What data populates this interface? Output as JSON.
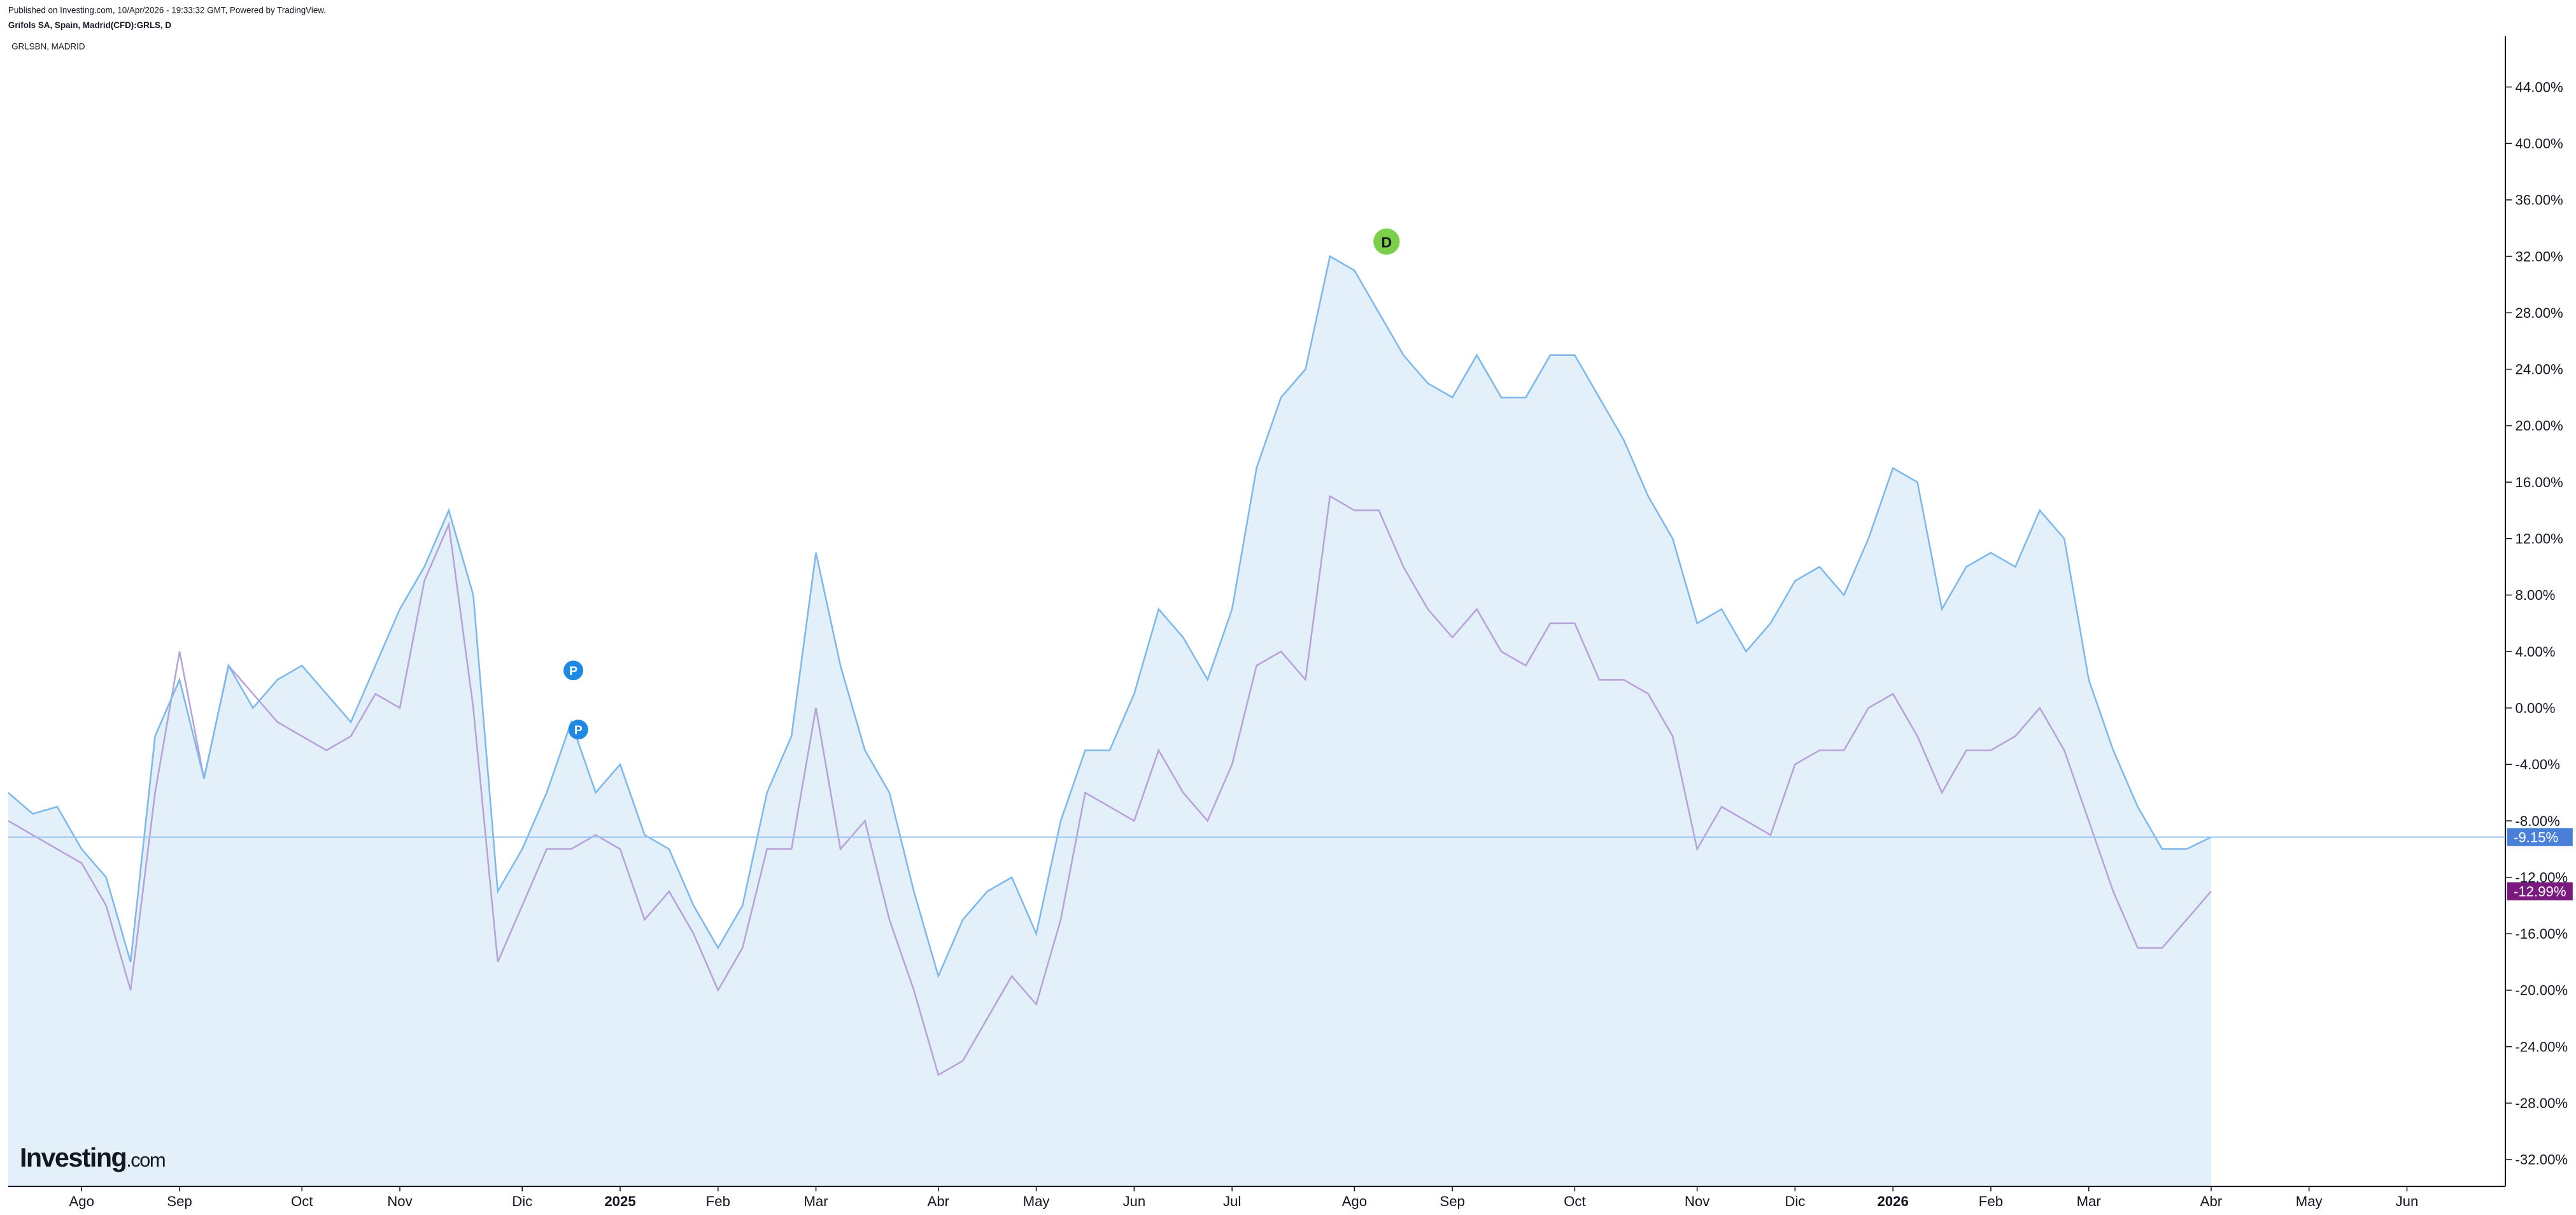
{
  "header": {
    "published": "Published on Investing.com, 10/Apr/2026 - 19:33:32 GMT, Powered by TradingView."
  },
  "logo": {
    "name": "Investing",
    "suffix": ".com"
  },
  "chart_data": {
    "type": "line",
    "title": "Grifols SA, Spain, Madrid(CFD):GRLS, D",
    "categories": [
      null,
      null,
      null,
      "Ago",
      null,
      null,
      null,
      "Sep",
      null,
      null,
      null,
      null,
      "Oct",
      null,
      null,
      null,
      "Nov",
      null,
      null,
      null,
      null,
      "Dic",
      null,
      null,
      null,
      "2025",
      null,
      null,
      null,
      "Feb",
      null,
      null,
      null,
      "Mar",
      null,
      null,
      null,
      null,
      "Abr",
      null,
      null,
      null,
      "May",
      null,
      null,
      null,
      "Jun",
      null,
      null,
      null,
      "Jul",
      null,
      null,
      null,
      null,
      "Ago",
      null,
      null,
      null,
      "Sep",
      null,
      null,
      null,
      null,
      "Oct",
      null,
      null,
      null,
      null,
      "Nov",
      null,
      null,
      null,
      "Dic",
      null,
      null,
      null,
      "2026",
      null,
      null,
      null,
      "Feb",
      null,
      null,
      null,
      "Mar",
      null,
      null,
      null,
      null,
      "Abr",
      null,
      null,
      null,
      "May",
      null,
      null,
      null,
      "Jun",
      null
    ],
    "series": [
      {
        "color": "#7db9ec",
        "fill": "#e3f0fa",
        "values": [
          -6,
          -7.5,
          -7,
          -10,
          -12,
          -18,
          -2,
          2,
          -5,
          3,
          0,
          2,
          3,
          1,
          -1,
          3,
          7,
          10,
          14,
          8,
          -13,
          -10,
          -6,
          -1,
          -6,
          -4,
          -9,
          -10,
          -14,
          -17,
          -14,
          -6,
          -2,
          11,
          3,
          -3,
          -6,
          -13,
          -19,
          -15,
          -13,
          -12,
          -16,
          -8,
          -3,
          -3,
          1,
          7,
          5,
          2,
          7,
          17,
          22,
          24,
          32,
          31,
          28,
          25,
          23,
          22,
          25,
          22,
          22,
          25,
          25,
          22,
          19,
          15,
          12,
          6,
          7,
          4,
          6,
          9,
          10,
          8,
          12,
          17,
          16,
          7,
          10,
          11,
          10,
          14,
          12,
          2,
          -3,
          -7,
          -10,
          -10,
          -9.15,
          null,
          null,
          null,
          null,
          null,
          null,
          null,
          null,
          null
        ],
        "value_labels": [
          null,
          null,
          null,
          null,
          null,
          null,
          null,
          null,
          null,
          null,
          null,
          null,
          null,
          null,
          null,
          null,
          null,
          null,
          null,
          null,
          null,
          null,
          null,
          null,
          null,
          null,
          null,
          null,
          null,
          null,
          null,
          null,
          null,
          null,
          null,
          null,
          null,
          null,
          null,
          null,
          null,
          null,
          null,
          null,
          null,
          null,
          null,
          null,
          null,
          null,
          null,
          null,
          null,
          null,
          null,
          null,
          null,
          null,
          null,
          null,
          null,
          null,
          null,
          null,
          null,
          null,
          null,
          null,
          null,
          null,
          null,
          null,
          null,
          null,
          null,
          null,
          null,
          null,
          null,
          null,
          null,
          null,
          null,
          null,
          null,
          null,
          null,
          null,
          null,
          null,
          "-9.15%",
          null,
          null,
          null,
          null,
          null,
          null,
          null,
          null,
          null
        ],
        "label_color": "#4a7fd8"
      },
      {
        "name": "GRLSBN, MADRID",
        "color": "#b7a3d8",
        "values": [
          -8,
          -9,
          -10,
          -11,
          -14,
          -20,
          -6,
          4,
          -5,
          3,
          1,
          -1,
          -2,
          -3,
          -2,
          1,
          0,
          9,
          13,
          0,
          -18,
          -14,
          -10,
          -10,
          -9,
          -10,
          -15,
          -13,
          -16,
          -20,
          -17,
          -10,
          -10,
          0,
          -10,
          -8,
          -15,
          -20,
          -26,
          -25,
          -22,
          -19,
          -21,
          -15,
          -6,
          -7,
          -8,
          -3,
          -6,
          -8,
          -4,
          3,
          4,
          2,
          15,
          14,
          14,
          10,
          7,
          5,
          7,
          4,
          3,
          6,
          6,
          2,
          2,
          1,
          -2,
          -10,
          -7,
          -8,
          -9,
          -4,
          -3,
          -3,
          0,
          1,
          -2,
          -6,
          -3,
          -3,
          -2,
          0,
          -3,
          -8,
          -13,
          -17,
          -17,
          -15,
          -12.99,
          null,
          null,
          null,
          null,
          null,
          null,
          null,
          null,
          null
        ],
        "value_labels": [
          null,
          null,
          null,
          null,
          null,
          null,
          null,
          null,
          null,
          null,
          null,
          null,
          null,
          null,
          null,
          null,
          null,
          null,
          null,
          null,
          null,
          null,
          null,
          null,
          null,
          null,
          null,
          null,
          null,
          null,
          null,
          null,
          null,
          null,
          null,
          null,
          null,
          null,
          null,
          null,
          null,
          null,
          null,
          null,
          null,
          null,
          null,
          null,
          null,
          null,
          null,
          null,
          null,
          null,
          null,
          null,
          null,
          null,
          null,
          null,
          null,
          null,
          null,
          null,
          null,
          null,
          null,
          null,
          null,
          null,
          null,
          null,
          null,
          null,
          null,
          null,
          null,
          null,
          null,
          null,
          null,
          null,
          null,
          null,
          null,
          null,
          null,
          null,
          null,
          null,
          "-12.99%",
          null,
          null,
          null,
          null,
          null,
          null,
          null,
          null,
          null
        ],
        "label_color": "#7b1a7e"
      }
    ],
    "ylim": [
      -33.9,
      47.6
    ],
    "yticks": [
      {
        "value": 44,
        "label": "44.00%"
      },
      {
        "value": 40,
        "label": "40.00%"
      },
      {
        "value": 36,
        "label": "36.00%"
      },
      {
        "value": 32,
        "label": "32.00%"
      },
      {
        "value": 28,
        "label": "28.00%"
      },
      {
        "value": 24,
        "label": "24.00%"
      },
      {
        "value": 20,
        "label": "20.00%"
      },
      {
        "value": 16,
        "label": "16.00%"
      },
      {
        "value": 12,
        "label": "12.00%"
      },
      {
        "value": 8,
        "label": "8.00%"
      },
      {
        "value": 4,
        "label": "4.00%"
      },
      {
        "value": 0,
        "label": "0.00%"
      },
      {
        "value": -4,
        "label": "-4.00%"
      },
      {
        "value": -8,
        "label": "-8.00%"
      },
      {
        "value": -12,
        "label": "-12.00%"
      },
      {
        "value": -16,
        "label": "-16.00%"
      },
      {
        "value": -20,
        "label": "-20.00%"
      },
      {
        "value": -24,
        "label": "-24.00%"
      },
      {
        "value": -28,
        "label": "-28.00%"
      },
      {
        "value": -32,
        "label": "-32.00%"
      }
    ],
    "events": [
      "P",
      "P",
      "D"
    ],
    "grid": false
  }
}
